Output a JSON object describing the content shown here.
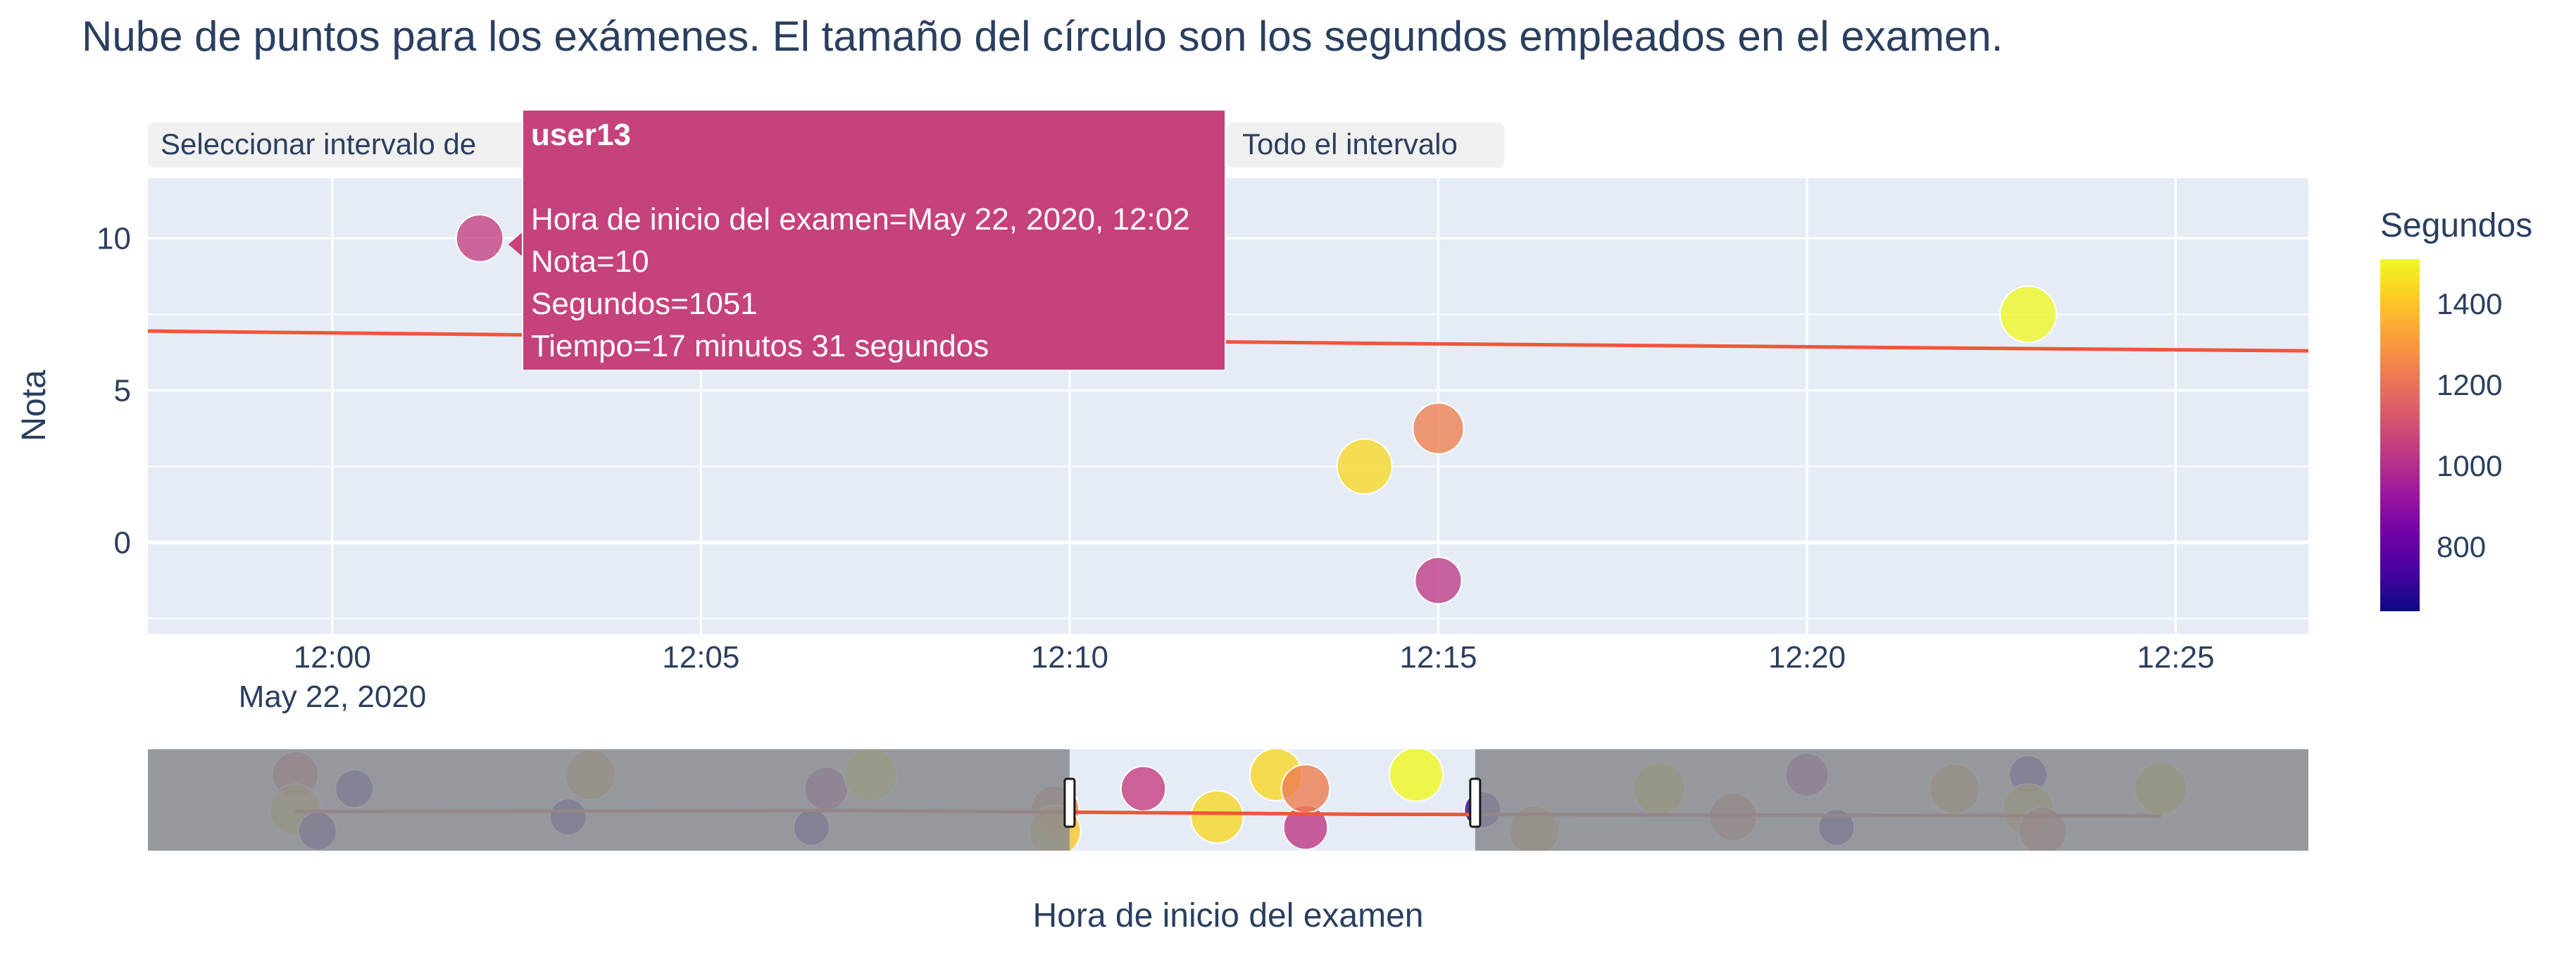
{
  "chart_data": {
    "type": "scatter",
    "title": "Nube de puntos para los exámenes. El tamaño del círculo son los segundos empleados en el examen.",
    "xlabel": "Hora de inicio del examen",
    "ylabel": "Nota",
    "x_date": "May 22, 2020",
    "xlim": [
      "11:57.5",
      "12:26.8"
    ],
    "ylim": [
      -3,
      12
    ],
    "x_ticks": [
      "12:00",
      "12:05",
      "12:10",
      "12:15",
      "12:20",
      "12:25"
    ],
    "y_ticks": [
      0,
      5,
      10
    ],
    "grid": true,
    "buttons": [
      "Seleccionar intervalo de",
      "Todo el intervalo"
    ],
    "colorbar": {
      "title": "Segundos",
      "ticks": [
        800,
        1000,
        1200,
        1400
      ],
      "range": [
        640,
        1510
      ]
    },
    "points": [
      {
        "user": "user13",
        "x": "12:02",
        "y": 10,
        "segundos": 1051
      },
      {
        "x": "12:14",
        "y": 2.5,
        "segundos": 1440
      },
      {
        "x": "12:15",
        "y": 3.75,
        "segundos": 1230
      },
      {
        "x": "12:15",
        "y": -1.25,
        "segundos": 1030
      },
      {
        "x": "12:23",
        "y": 7.5,
        "segundos": 1510
      }
    ],
    "trend_line": [
      {
        "x": "11:57.5",
        "y": 6.95
      },
      {
        "x": "12:14",
        "y": 6.55
      },
      {
        "x": "12:26.8",
        "y": 6.3
      }
    ],
    "rangeslider": {
      "selected": [
        "12:10",
        "12:15.5"
      ],
      "points": [
        {
          "x": "11:59.5",
          "segundos": 1120
        },
        {
          "x": "11:59.5",
          "segundos": 1400
        },
        {
          "x": "11:59.8",
          "segundos": 760
        },
        {
          "x": "12:00.3",
          "segundos": 760
        },
        {
          "x": "12:03.2",
          "segundos": 700
        },
        {
          "x": "12:03.5",
          "segundos": 1330
        },
        {
          "x": "12:06.5",
          "segundos": 680
        },
        {
          "x": "12:06.7",
          "segundos": 980
        },
        {
          "x": "12:07.3",
          "segundos": 1480
        },
        {
          "x": "12:09.8",
          "segundos": 1240
        },
        {
          "x": "12:09.8",
          "segundos": 1400
        },
        {
          "x": "12:11",
          "segundos": 1051
        },
        {
          "x": "12:12",
          "segundos": 1440
        },
        {
          "x": "12:12.8",
          "segundos": 1440
        },
        {
          "x": "12:13.2",
          "segundos": 1030
        },
        {
          "x": "12:13.2",
          "segundos": 1230
        },
        {
          "x": "12:14.7",
          "segundos": 1510
        },
        {
          "x": "12:15.6",
          "segundos": 700
        },
        {
          "x": "12:16.3",
          "segundos": 1330
        },
        {
          "x": "12:18",
          "segundos": 1450
        },
        {
          "x": "12:19",
          "segundos": 1200
        },
        {
          "x": "12:20",
          "segundos": 980
        },
        {
          "x": "12:20.4",
          "segundos": 680
        },
        {
          "x": "12:22",
          "segundos": 1330
        },
        {
          "x": "12:23",
          "segundos": 760
        },
        {
          "x": "12:23",
          "segundos": 1400
        },
        {
          "x": "12:23.2",
          "segundos": 1200
        },
        {
          "x": "12:24.8",
          "segundos": 1440
        }
      ],
      "trend_line": [
        {
          "x": "11:59.5",
          "y": 6.95
        },
        {
          "x": "12:07",
          "y": 7.1
        },
        {
          "x": "12:14",
          "y": 6.55
        },
        {
          "x": "12:24.8",
          "y": 6.3
        }
      ]
    }
  },
  "tooltip": {
    "user": "user13",
    "lines": [
      "Hora de inicio del examen=May 22, 2020, 12:02",
      "Nota=10",
      "Segundos=1051",
      "Tiempo=17 minutos 31 segundos"
    ]
  },
  "colors": {
    "plot_bg": "#e5ecf6",
    "grid": "#ffffff",
    "text": "#2a3f5f",
    "trend": "#ef553b",
    "button_bg": "#f0f0f0",
    "tooltip_bg": "#c5427c",
    "slider_mask": "#8a8d92"
  }
}
